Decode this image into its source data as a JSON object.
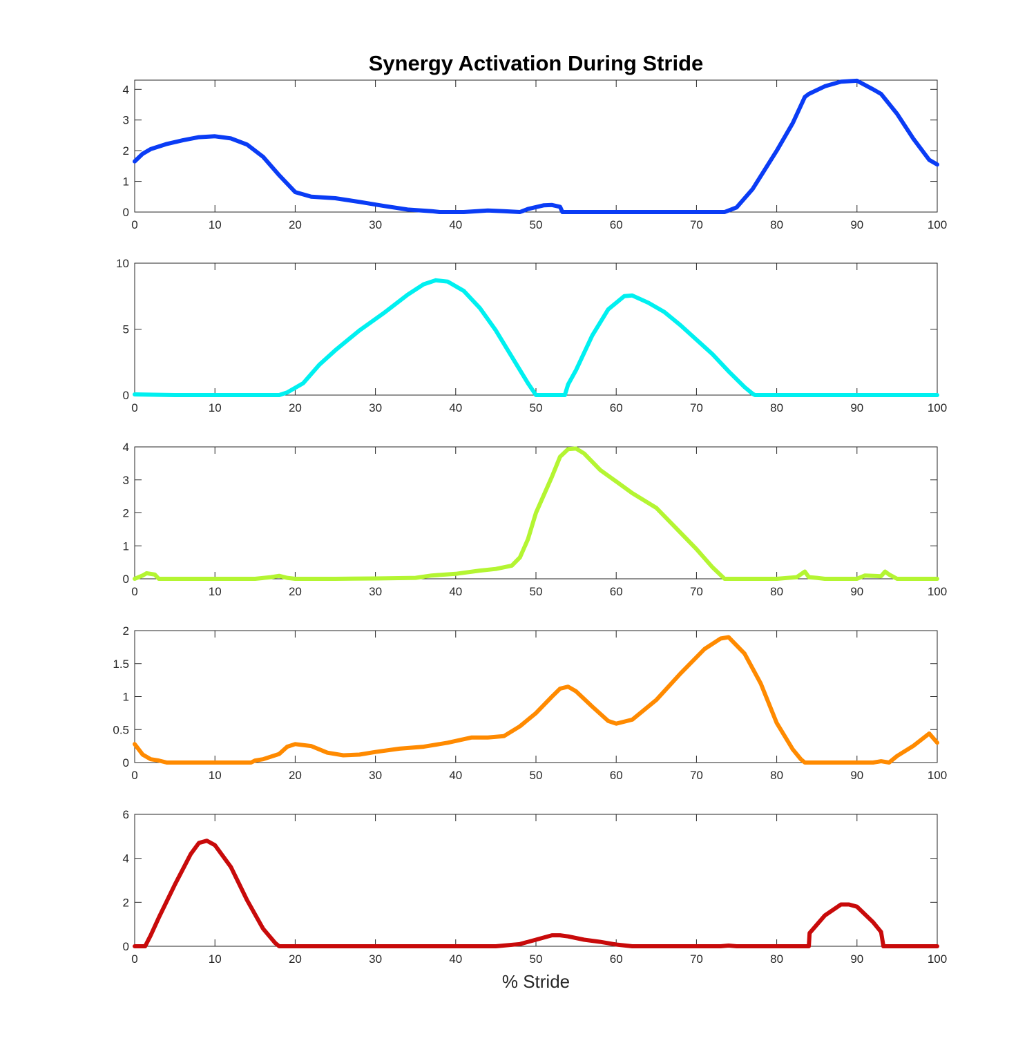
{
  "chart_data": {
    "type": "line",
    "title": "Synergy Activation During Stride",
    "xlabel": "% Stride",
    "xlim": [
      0,
      100
    ],
    "xticks": [
      0,
      10,
      20,
      30,
      40,
      50,
      60,
      70,
      80,
      90,
      100
    ],
    "grid": false,
    "panels": [
      {
        "ylim": [
          0,
          4.3
        ],
        "yticks": [
          0,
          1,
          2,
          3,
          4
        ],
        "ytick_labels": [
          "0",
          "1",
          "2",
          "3",
          "4"
        ],
        "color": "#0a3cf5",
        "points": [
          [
            0,
            1.65
          ],
          [
            1,
            1.9
          ],
          [
            2,
            2.05
          ],
          [
            4,
            2.22
          ],
          [
            6,
            2.34
          ],
          [
            8,
            2.44
          ],
          [
            10,
            2.47
          ],
          [
            12,
            2.4
          ],
          [
            14,
            2.2
          ],
          [
            16,
            1.8
          ],
          [
            18,
            1.2
          ],
          [
            20,
            0.65
          ],
          [
            22,
            0.5
          ],
          [
            25,
            0.45
          ],
          [
            28,
            0.33
          ],
          [
            31,
            0.2
          ],
          [
            34,
            0.08
          ],
          [
            37,
            0.03
          ],
          [
            38,
            0.0
          ],
          [
            41,
            0.0
          ],
          [
            44,
            0.05
          ],
          [
            46,
            0.03
          ],
          [
            48,
            0.0
          ],
          [
            49,
            0.1
          ],
          [
            51,
            0.22
          ],
          [
            52,
            0.23
          ],
          [
            53,
            0.17
          ],
          [
            53.3,
            0.0
          ],
          [
            60,
            0.0
          ],
          [
            70,
            0.0
          ],
          [
            73.5,
            0.0
          ],
          [
            75,
            0.15
          ],
          [
            77,
            0.75
          ],
          [
            80,
            2.0
          ],
          [
            82,
            2.9
          ],
          [
            83.5,
            3.75
          ],
          [
            84,
            3.85
          ],
          [
            86,
            4.1
          ],
          [
            88,
            4.25
          ],
          [
            90,
            4.28
          ],
          [
            92,
            4.0
          ],
          [
            93,
            3.85
          ],
          [
            95,
            3.2
          ],
          [
            97,
            2.4
          ],
          [
            99,
            1.7
          ],
          [
            100,
            1.55
          ]
        ]
      },
      {
        "ylim": [
          0,
          10
        ],
        "yticks": [
          0,
          5,
          10
        ],
        "ytick_labels": [
          "0",
          "5",
          "10"
        ],
        "color": "#00f0f0",
        "points": [
          [
            0,
            0.05
          ],
          [
            3,
            0.02
          ],
          [
            5,
            0.0
          ],
          [
            10,
            0.0
          ],
          [
            15,
            0.0
          ],
          [
            18,
            0.0
          ],
          [
            19,
            0.2
          ],
          [
            21,
            0.9
          ],
          [
            23,
            2.3
          ],
          [
            25,
            3.4
          ],
          [
            28,
            4.9
          ],
          [
            31,
            6.2
          ],
          [
            34,
            7.6
          ],
          [
            36,
            8.4
          ],
          [
            37.5,
            8.7
          ],
          [
            39,
            8.6
          ],
          [
            41,
            7.9
          ],
          [
            43,
            6.6
          ],
          [
            45,
            4.9
          ],
          [
            47,
            2.9
          ],
          [
            49,
            0.9
          ],
          [
            50,
            0.0
          ],
          [
            53.6,
            0.0
          ],
          [
            54,
            0.8
          ],
          [
            55,
            1.9
          ],
          [
            57,
            4.5
          ],
          [
            59,
            6.5
          ],
          [
            61,
            7.5
          ],
          [
            62,
            7.55
          ],
          [
            64,
            7.0
          ],
          [
            66,
            6.3
          ],
          [
            68,
            5.3
          ],
          [
            70,
            4.2
          ],
          [
            72,
            3.1
          ],
          [
            74,
            1.8
          ],
          [
            76,
            0.6
          ],
          [
            77,
            0.1
          ],
          [
            77.3,
            0.0
          ],
          [
            80,
            0.0
          ],
          [
            90,
            0.0
          ],
          [
            100,
            0.0
          ]
        ]
      },
      {
        "ylim": [
          0,
          4
        ],
        "yticks": [
          0,
          1,
          2,
          3,
          4
        ],
        "ytick_labels": [
          "0",
          "1",
          "2",
          "3",
          "4"
        ],
        "color": "#b4f532",
        "points": [
          [
            0,
            0.0
          ],
          [
            1,
            0.1
          ],
          [
            1.5,
            0.17
          ],
          [
            2.5,
            0.13
          ],
          [
            3,
            0.0
          ],
          [
            10,
            0.0
          ],
          [
            15,
            0.0
          ],
          [
            17,
            0.05
          ],
          [
            18,
            0.09
          ],
          [
            19,
            0.03
          ],
          [
            20,
            0.0
          ],
          [
            25,
            0.0
          ],
          [
            30,
            0.01
          ],
          [
            35,
            0.03
          ],
          [
            37,
            0.1
          ],
          [
            40,
            0.15
          ],
          [
            43,
            0.25
          ],
          [
            45,
            0.3
          ],
          [
            47,
            0.4
          ],
          [
            48,
            0.65
          ],
          [
            49,
            1.2
          ],
          [
            50,
            2.0
          ],
          [
            52,
            3.1
          ],
          [
            53,
            3.7
          ],
          [
            54,
            3.93
          ],
          [
            55,
            3.95
          ],
          [
            56,
            3.8
          ],
          [
            58,
            3.3
          ],
          [
            60,
            2.95
          ],
          [
            62,
            2.6
          ],
          [
            65,
            2.15
          ],
          [
            68,
            1.4
          ],
          [
            70,
            0.9
          ],
          [
            72,
            0.35
          ],
          [
            73.5,
            0.0
          ],
          [
            80,
            0.0
          ],
          [
            82.5,
            0.05
          ],
          [
            83.5,
            0.22
          ],
          [
            84,
            0.05
          ],
          [
            85,
            0.03
          ],
          [
            86,
            0.0
          ],
          [
            90,
            0.0
          ],
          [
            91,
            0.1
          ],
          [
            93,
            0.08
          ],
          [
            93.5,
            0.22
          ],
          [
            94,
            0.13
          ],
          [
            95,
            0.0
          ],
          [
            100,
            0.0
          ]
        ]
      },
      {
        "ylim": [
          0,
          2
        ],
        "yticks": [
          0,
          0.5,
          1,
          1.5,
          2
        ],
        "ytick_labels": [
          "0",
          "0.5",
          "1",
          "1.5",
          "2"
        ],
        "color": "#ff8a00",
        "points": [
          [
            0,
            0.28
          ],
          [
            1,
            0.12
          ],
          [
            2,
            0.05
          ],
          [
            3,
            0.03
          ],
          [
            4,
            0.0
          ],
          [
            10,
            0.0
          ],
          [
            14.5,
            0.0
          ],
          [
            15,
            0.03
          ],
          [
            16,
            0.05
          ],
          [
            18,
            0.13
          ],
          [
            19,
            0.24
          ],
          [
            20,
            0.28
          ],
          [
            22,
            0.25
          ],
          [
            24,
            0.15
          ],
          [
            26,
            0.11
          ],
          [
            28,
            0.12
          ],
          [
            30,
            0.16
          ],
          [
            33,
            0.21
          ],
          [
            36,
            0.24
          ],
          [
            39,
            0.3
          ],
          [
            42,
            0.38
          ],
          [
            44,
            0.38
          ],
          [
            46,
            0.4
          ],
          [
            48,
            0.55
          ],
          [
            50,
            0.75
          ],
          [
            52,
            1.0
          ],
          [
            53,
            1.12
          ],
          [
            54,
            1.15
          ],
          [
            55,
            1.08
          ],
          [
            57,
            0.85
          ],
          [
            59,
            0.63
          ],
          [
            60,
            0.59
          ],
          [
            62,
            0.65
          ],
          [
            65,
            0.95
          ],
          [
            68,
            1.35
          ],
          [
            71,
            1.72
          ],
          [
            73,
            1.88
          ],
          [
            74,
            1.9
          ],
          [
            76,
            1.65
          ],
          [
            78,
            1.2
          ],
          [
            80,
            0.6
          ],
          [
            82,
            0.2
          ],
          [
            83,
            0.05
          ],
          [
            83.5,
            0.0
          ],
          [
            85,
            0.0
          ],
          [
            90,
            0.0
          ],
          [
            92,
            0.0
          ],
          [
            93,
            0.02
          ],
          [
            94,
            0.0
          ],
          [
            95,
            0.1
          ],
          [
            97,
            0.25
          ],
          [
            99,
            0.44
          ],
          [
            100,
            0.3
          ]
        ]
      },
      {
        "ylim": [
          0,
          6
        ],
        "yticks": [
          0,
          2,
          4,
          6
        ],
        "ytick_labels": [
          "0",
          "2",
          "4",
          "6"
        ],
        "color": "#c80a0a",
        "points": [
          [
            0,
            0.0
          ],
          [
            1.3,
            0.0
          ],
          [
            2,
            0.5
          ],
          [
            3,
            1.3
          ],
          [
            5,
            2.8
          ],
          [
            7,
            4.2
          ],
          [
            8,
            4.7
          ],
          [
            9,
            4.8
          ],
          [
            10,
            4.6
          ],
          [
            12,
            3.6
          ],
          [
            14,
            2.1
          ],
          [
            16,
            0.8
          ],
          [
            17.5,
            0.15
          ],
          [
            18,
            0.0
          ],
          [
            20,
            0.0
          ],
          [
            30,
            0.0
          ],
          [
            40,
            0.0
          ],
          [
            45,
            0.0
          ],
          [
            48,
            0.1
          ],
          [
            50,
            0.3
          ],
          [
            52,
            0.5
          ],
          [
            53,
            0.5
          ],
          [
            54,
            0.45
          ],
          [
            56,
            0.3
          ],
          [
            58,
            0.2
          ],
          [
            60,
            0.08
          ],
          [
            62,
            0.0
          ],
          [
            70,
            0.0
          ],
          [
            73,
            0.0
          ],
          [
            74,
            0.03
          ],
          [
            75,
            0.0
          ],
          [
            84,
            0.0
          ],
          [
            84.1,
            0.6
          ],
          [
            86,
            1.4
          ],
          [
            88,
            1.9
          ],
          [
            89,
            1.9
          ],
          [
            90,
            1.8
          ],
          [
            92,
            1.1
          ],
          [
            93,
            0.65
          ],
          [
            93.3,
            0.0
          ],
          [
            95,
            0.0
          ],
          [
            100,
            0.0
          ]
        ]
      }
    ]
  }
}
